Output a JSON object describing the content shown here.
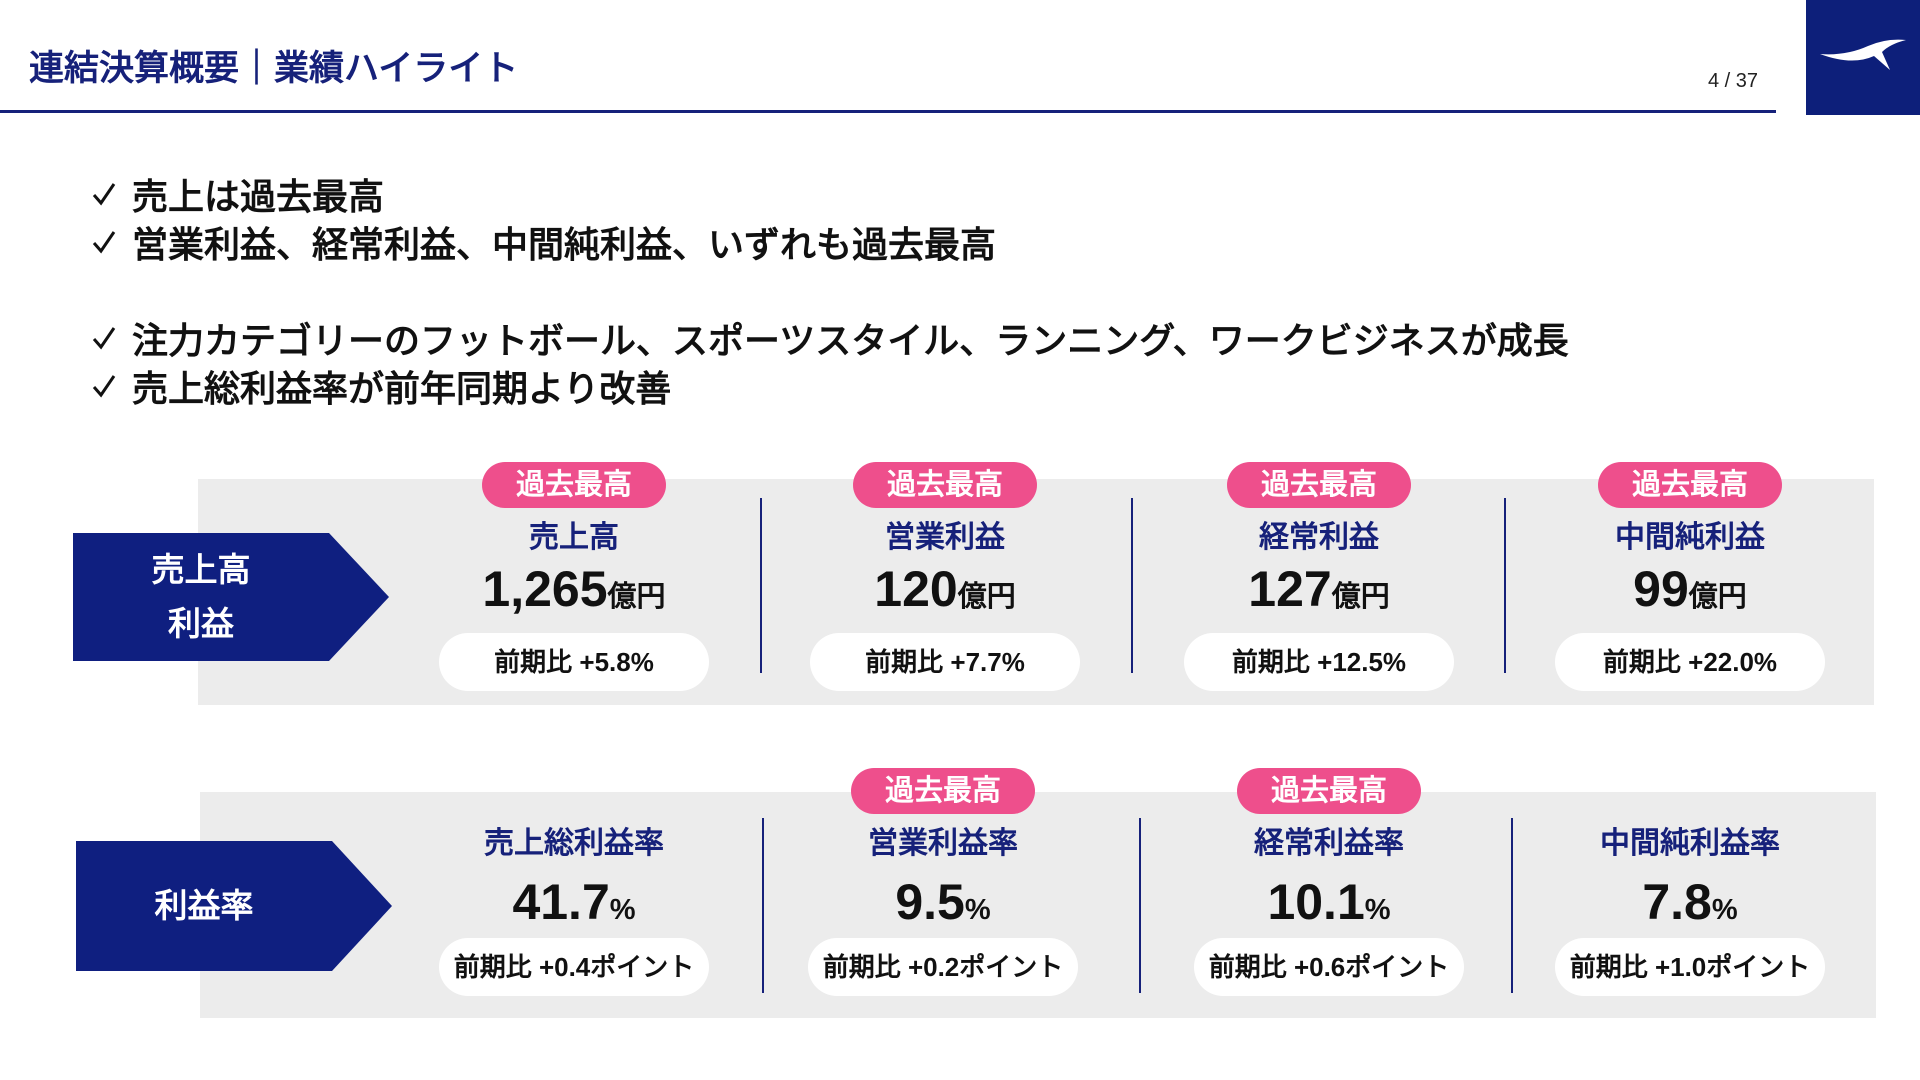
{
  "header": {
    "title": "連結決算概要｜業績ハイライト",
    "page": "4 / 37"
  },
  "bullets": [
    "売上は過去最高",
    "営業利益、経常利益、中間純利益、いずれも過去最高",
    "注力カテゴリーのフットボール、スポーツスタイル、ランニング、ワークビジネスが成長",
    "売上総利益率が前年同期より改善"
  ],
  "sections": [
    {
      "label": [
        "売上高",
        "利益"
      ],
      "items": [
        {
          "badge": "過去最高",
          "name": "売上高",
          "value": "1,265",
          "unit": "億円",
          "comparison": "前期比 +5.8%"
        },
        {
          "badge": "過去最高",
          "name": "営業利益",
          "value": "120",
          "unit": "億円",
          "comparison": "前期比 +7.7%"
        },
        {
          "badge": "過去最高",
          "name": "経常利益",
          "value": "127",
          "unit": "億円",
          "comparison": "前期比 +12.5%"
        },
        {
          "badge": "過去最高",
          "name": "中間純利益",
          "value": "99",
          "unit": "億円",
          "comparison": "前期比 +22.0%"
        }
      ]
    },
    {
      "label": [
        "利益率"
      ],
      "items": [
        {
          "name": "売上総利益率",
          "value": "41.7",
          "unit": "%",
          "comparison": "前期比 +0.4ポイント"
        },
        {
          "badge": "過去最高",
          "name": "営業利益率",
          "value": "9.5",
          "unit": "%",
          "comparison": "前期比 +0.2ポイント"
        },
        {
          "badge": "過去最高",
          "name": "経常利益率",
          "value": "10.1",
          "unit": "%",
          "comparison": "前期比 +0.6ポイント"
        },
        {
          "name": "中間純利益率",
          "value": "7.8",
          "unit": "%",
          "comparison": "前期比 +1.0ポイント"
        }
      ]
    }
  ]
}
